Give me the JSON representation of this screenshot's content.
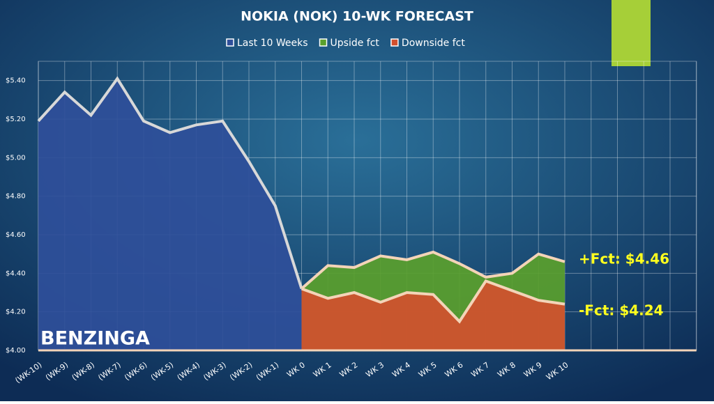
{
  "chart_data": {
    "type": "area",
    "title": "NOKIA (NOK) 10-WK FORECAST",
    "categories": [
      "(WK-10)",
      "(WK-9)",
      "(WK-8)",
      "(WK-7)",
      "(WK-6)",
      "(WK-5)",
      "(WK-4)",
      "(WK-3)",
      "(WK-2)",
      "(WK-1)",
      "WK 0",
      "WK 1",
      "WK 2",
      "WK 3",
      "WK 4",
      "WK 5",
      "WK 6",
      "WK 7",
      "WK 8",
      "WK 9",
      "WK 10",
      null,
      null,
      null,
      null,
      null
    ],
    "series": [
      {
        "name": "Last 10 Weeks",
        "color": "#2f4f9a",
        "values": [
          5.19,
          5.34,
          5.22,
          5.41,
          5.19,
          5.13,
          5.17,
          5.19,
          4.98,
          4.75,
          4.32,
          null,
          null,
          null,
          null,
          null,
          null,
          null,
          null,
          null,
          null,
          null,
          null,
          null,
          null,
          null
        ]
      },
      {
        "name": "Upside fct",
        "color": "#5aa02c",
        "values": [
          null,
          null,
          null,
          null,
          null,
          null,
          null,
          null,
          null,
          null,
          4.32,
          4.44,
          4.43,
          4.49,
          4.47,
          4.51,
          4.45,
          4.38,
          4.4,
          4.5,
          4.46,
          null,
          null,
          null,
          null,
          null
        ]
      },
      {
        "name": "Downside fct",
        "color": "#d2502e",
        "values": [
          null,
          null,
          null,
          null,
          null,
          null,
          null,
          null,
          null,
          null,
          4.32,
          4.27,
          4.3,
          4.25,
          4.3,
          4.29,
          4.15,
          4.36,
          4.31,
          4.26,
          4.24,
          null,
          null,
          null,
          null,
          null
        ]
      }
    ],
    "ylim": [
      4.0,
      5.5
    ],
    "yticks": [
      {
        "value": 4.0,
        "label": "$4.00"
      },
      {
        "value": 4.2,
        "label": "$4.20"
      },
      {
        "value": 4.4,
        "label": "$4.40"
      },
      {
        "value": 4.6,
        "label": "$4.60"
      },
      {
        "value": 4.8,
        "label": "$4.80"
      },
      {
        "value": 5.0,
        "label": "$5.00"
      },
      {
        "value": 5.2,
        "label": "$5.20"
      },
      {
        "value": 5.4,
        "label": "$5.40"
      }
    ],
    "grid": true,
    "legend": "top",
    "annotations": [
      "+Fct: $4.46",
      "-Fct: $4.24"
    ],
    "brand": "BENZINGA"
  }
}
